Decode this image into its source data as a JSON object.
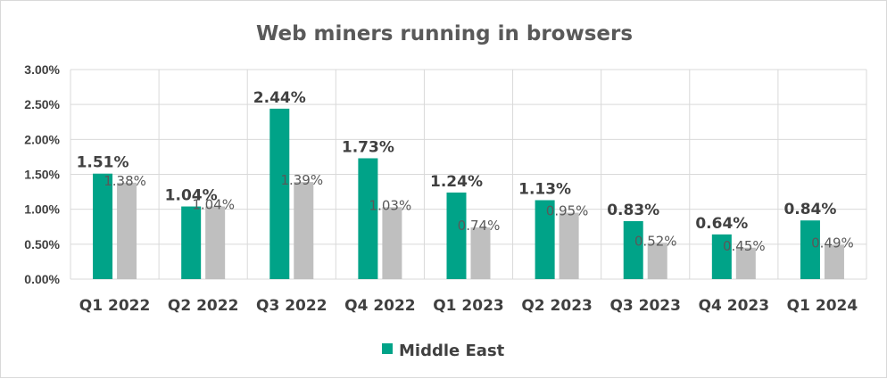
{
  "chart_data": {
    "type": "bar",
    "title": "Web miners running in browsers",
    "categories": [
      "Q1 2022",
      "Q2 2022",
      "Q3 2022",
      "Q4 2022",
      "Q1 2023",
      "Q2 2023",
      "Q3 2023",
      "Q4 2023",
      "Q1 2024"
    ],
    "series": [
      {
        "name": "Middle East",
        "color": "#00a388",
        "values": [
          1.51,
          1.04,
          2.44,
          1.73,
          1.24,
          1.13,
          0.83,
          0.64,
          0.84
        ],
        "labels": [
          "1.51%",
          "1.04%",
          "2.44%",
          "1.73%",
          "1.24%",
          "1.13%",
          "0.83%",
          "0.64%",
          "0.84%"
        ]
      },
      {
        "color": "#bfbfbf",
        "values": [
          1.38,
          1.04,
          1.39,
          1.03,
          0.74,
          0.95,
          0.52,
          0.45,
          0.49
        ],
        "labels": [
          "1.38%",
          "1.04%",
          "1.39%",
          "1.03%",
          "0.74%",
          "0.95%",
          "0.52%",
          "0.45%",
          "0.49%"
        ]
      }
    ],
    "ylim": [
      0,
      3
    ],
    "yticks": [
      "0.00%",
      "0.50%",
      "1.00%",
      "1.50%",
      "2.00%",
      "2.50%",
      "3.00%"
    ],
    "grid": true,
    "legend": {
      "position": "bottom",
      "entries": [
        "Middle East"
      ]
    }
  }
}
